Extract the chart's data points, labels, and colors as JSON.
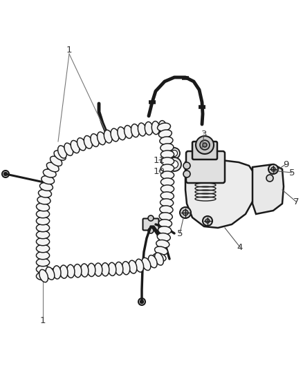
{
  "bg_color": "#ffffff",
  "line_color": "#1a1a1a",
  "label_color": "#333333",
  "figsize": [
    4.38,
    5.33
  ],
  "dpi": 100,
  "harness_color": "#1a1a1a",
  "harness_fill": "#f0f0f0",
  "bracket_color": "#1a1a1a",
  "valve_face": "#d8d8d8",
  "valve_dark": "#aaaaaa"
}
